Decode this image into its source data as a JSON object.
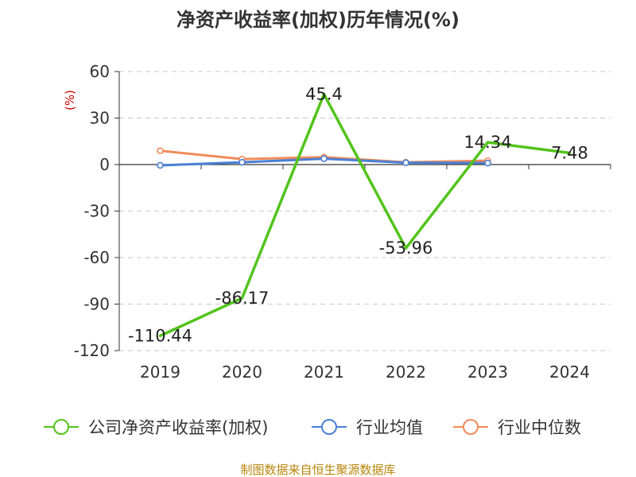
{
  "chart_data": {
    "type": "line",
    "title": "净资产收益率(加权)历年情况(%)",
    "y_unit_label": "(%)",
    "categories": [
      "2019",
      "2020",
      "2021",
      "2022",
      "2023",
      "2024"
    ],
    "ylim": [
      -120,
      60
    ],
    "yticks": [
      60,
      30,
      0,
      -30,
      -60,
      -90,
      -120
    ],
    "grid": true,
    "legend_position": "bottom",
    "series": [
      {
        "name": "公司净资产收益率(加权)",
        "color": "#52c41a",
        "values": [
          -110.44,
          -86.17,
          45.4,
          -53.96,
          14.34,
          7.48
        ],
        "labels": [
          "-110.44",
          "-86.17",
          "45.4",
          "-53.96",
          "14.34",
          "7.48"
        ]
      },
      {
        "name": "行业均值",
        "color": "#4a7fd6",
        "values": [
          -0.5,
          1.5,
          3.8,
          1.2,
          1.0,
          null
        ]
      },
      {
        "name": "行业中位数",
        "color": "#f08c5a",
        "values": [
          8.9,
          3.5,
          4.8,
          1.5,
          2.5,
          null
        ]
      }
    ],
    "source": "制图数据来自恒生聚源数据库"
  }
}
